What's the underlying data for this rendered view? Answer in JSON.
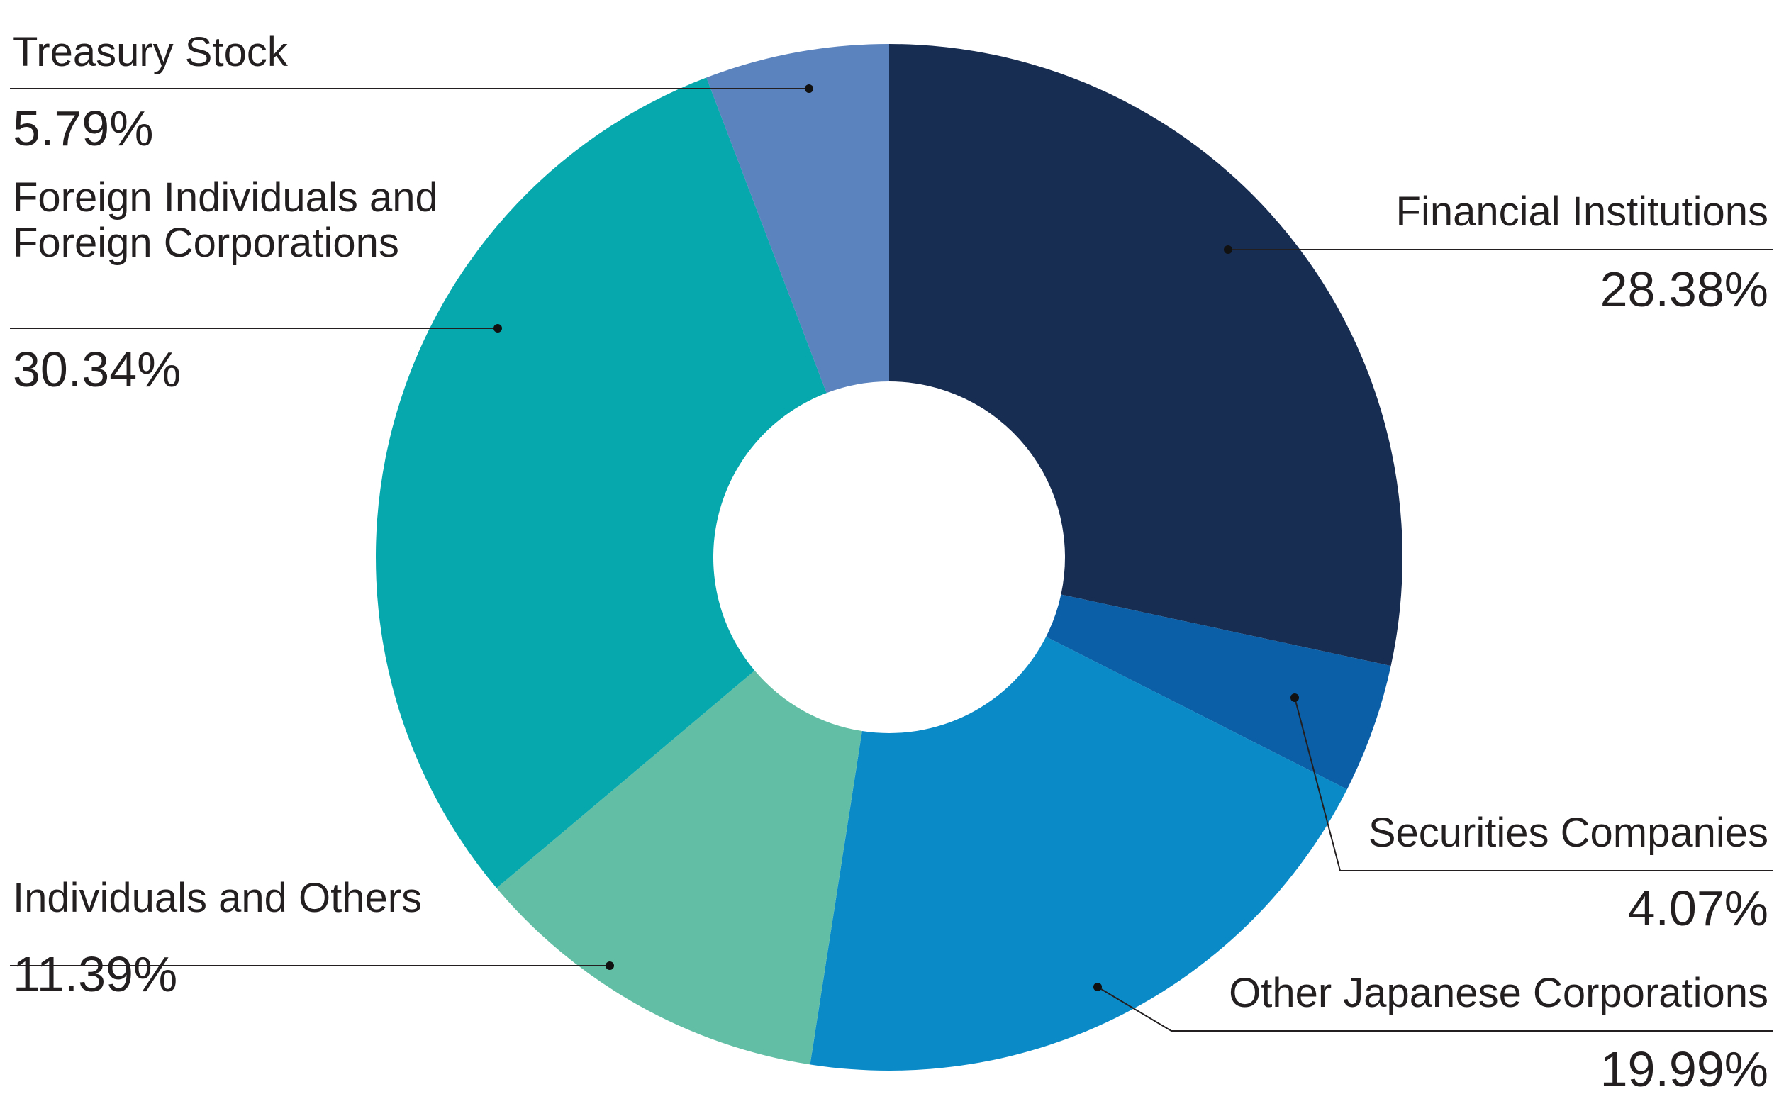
{
  "chart_data": {
    "type": "pie",
    "donut": true,
    "legend": "none",
    "categories": [
      "Financial Institutions",
      "Securities Companies",
      "Other Japanese Corporations",
      "Individuals and Others",
      "Foreign Individuals and Foreign Corporations",
      "Treasury Stock"
    ],
    "values": [
      28.38,
      4.07,
      19.99,
      11.39,
      30.34,
      5.79
    ],
    "colors": [
      "#182d52",
      "#0a5fa7",
      "#0a8bc8",
      "#62bfa5",
      "#07a8ad",
      "#5b83be"
    ],
    "slices": [
      {
        "label": "Financial Institutions",
        "label_lines": [
          "Financial Institutions"
        ],
        "value": 28.38,
        "value_text": "28.38%",
        "color": "#182d52"
      },
      {
        "label": "Securities Companies",
        "label_lines": [
          "Securities Companies"
        ],
        "value": 4.07,
        "value_text": "4.07%",
        "color": "#0a5fa7"
      },
      {
        "label": "Other Japanese Corporations",
        "label_lines": [
          "Other Japanese Corporations"
        ],
        "value": 19.99,
        "value_text": "19.99%",
        "color": "#0a8bc8"
      },
      {
        "label": "Individuals and Others",
        "label_lines": [
          "Individuals and Others"
        ],
        "value": 11.39,
        "value_text": "11.39%",
        "color": "#62bfa5"
      },
      {
        "label": "Foreign Individuals and Foreign Corporations",
        "label_lines": [
          "Foreign Individuals and",
          "Foreign Corporations"
        ],
        "value": 30.34,
        "value_text": "30.34%",
        "color": "#07a8ad"
      },
      {
        "label": "Treasury Stock",
        "label_lines": [
          "Treasury Stock"
        ],
        "value": 5.79,
        "value_text": "5.79%",
        "color": "#5b83be"
      }
    ]
  }
}
